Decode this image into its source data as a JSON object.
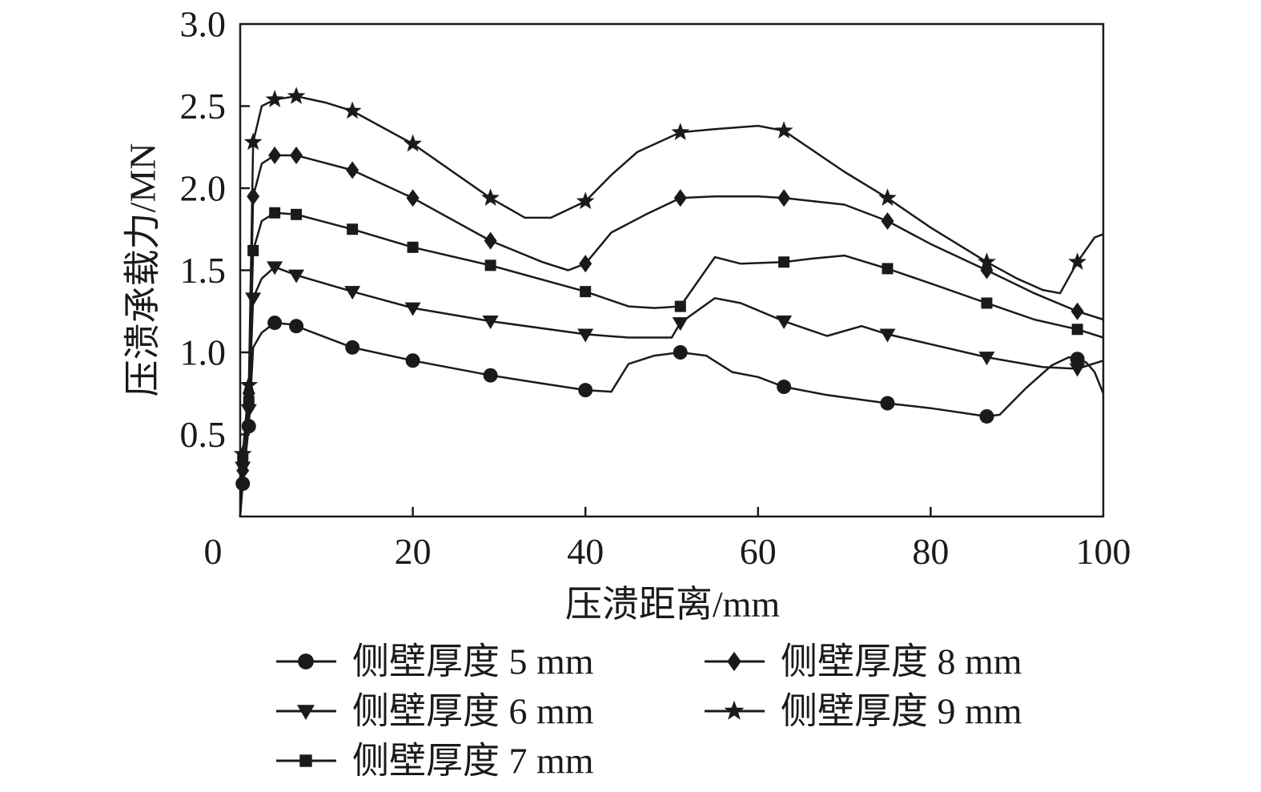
{
  "chart_data": {
    "type": "line",
    "xlabel": "压溃距离/mm",
    "ylabel": "压溃承载力/MN",
    "xlim": [
      0,
      100
    ],
    "ylim": [
      0,
      3.0
    ],
    "xticks": [
      "0",
      "20",
      "40",
      "60",
      "80",
      "100"
    ],
    "yticks": [
      "0.5",
      "1.0",
      "1.5",
      "2.0",
      "2.5",
      "3.0"
    ],
    "xtick_values": [
      0,
      20,
      40,
      60,
      80,
      100
    ],
    "ytick_values": [
      0.5,
      1.0,
      1.5,
      2.0,
      2.5,
      3.0
    ],
    "grid": false,
    "legend_position": "bottom",
    "line_color": "#1a1a1a",
    "series": [
      {
        "name": "侧壁厚度 5 mm",
        "marker": "circle",
        "x": [
          0,
          0.3,
          1,
          1.5,
          2.5,
          4,
          6,
          8,
          13,
          20,
          29,
          35,
          40,
          43,
          45,
          48,
          51,
          54,
          57,
          60,
          63,
          68,
          75,
          80,
          86.5,
          88,
          91,
          94,
          96,
          97,
          98,
          99,
          100
        ],
        "y": [
          0,
          0.2,
          0.55,
          1.03,
          1.12,
          1.18,
          1.17,
          1.13,
          1.03,
          0.95,
          0.86,
          0.81,
          0.77,
          0.76,
          0.93,
          0.98,
          1.0,
          0.98,
          0.88,
          0.85,
          0.79,
          0.74,
          0.69,
          0.66,
          0.61,
          0.62,
          0.78,
          0.92,
          0.97,
          0.96,
          0.94,
          0.88,
          0.75
        ],
        "marker_x": [
          0.3,
          1,
          4,
          6.5,
          13,
          20,
          29,
          40,
          51,
          63,
          75,
          86.5,
          97
        ]
      },
      {
        "name": "侧壁厚度 6 mm",
        "marker": "triangle-down",
        "x": [
          0,
          0.3,
          1,
          1.5,
          2.5,
          4,
          6.5,
          13,
          20,
          29,
          40,
          45,
          50,
          51,
          55,
          58,
          63,
          68,
          72,
          75,
          80,
          86.5,
          93,
          97,
          100
        ],
        "y": [
          0,
          0.3,
          0.65,
          1.33,
          1.45,
          1.52,
          1.47,
          1.37,
          1.27,
          1.19,
          1.11,
          1.09,
          1.09,
          1.18,
          1.33,
          1.3,
          1.19,
          1.1,
          1.16,
          1.11,
          1.05,
          0.97,
          0.91,
          0.9,
          0.95
        ],
        "marker_x": [
          0.3,
          1,
          1.5,
          4,
          6.5,
          13,
          20,
          29,
          40,
          51,
          63,
          75,
          86.5,
          97
        ]
      },
      {
        "name": "侧壁厚度 7 mm",
        "marker": "square",
        "x": [
          0,
          0.3,
          1,
          1.5,
          2.5,
          4,
          6.5,
          13,
          20,
          29,
          40,
          45,
          48,
          51,
          55,
          58,
          63,
          66,
          70,
          75,
          80,
          86.5,
          92,
          97,
          100
        ],
        "y": [
          0,
          0.35,
          0.7,
          1.62,
          1.8,
          1.85,
          1.84,
          1.75,
          1.64,
          1.53,
          1.37,
          1.28,
          1.27,
          1.28,
          1.58,
          1.54,
          1.55,
          1.57,
          1.59,
          1.51,
          1.42,
          1.3,
          1.2,
          1.14,
          1.09
        ],
        "marker_x": [
          0.3,
          1,
          1.5,
          4,
          6.5,
          13,
          20,
          29,
          40,
          51,
          63,
          75,
          86.5,
          97
        ]
      },
      {
        "name": "侧壁厚度 8 mm",
        "marker": "diamond",
        "x": [
          0,
          0.3,
          1,
          1.5,
          2.5,
          4,
          6.5,
          13,
          20,
          29,
          35,
          38,
          40,
          43,
          47,
          51,
          55,
          60,
          63,
          70,
          75,
          80,
          86.5,
          92,
          97,
          100
        ],
        "y": [
          0,
          0.28,
          0.75,
          1.95,
          2.15,
          2.2,
          2.2,
          2.11,
          1.94,
          1.68,
          1.55,
          1.5,
          1.54,
          1.73,
          1.84,
          1.94,
          1.95,
          1.95,
          1.94,
          1.9,
          1.8,
          1.66,
          1.5,
          1.36,
          1.25,
          1.2
        ],
        "marker_x": [
          0.3,
          1,
          1.5,
          4,
          6.5,
          13,
          20,
          29,
          40,
          51,
          63,
          75,
          86.5,
          97
        ]
      },
      {
        "name": "侧壁厚度 9 mm",
        "marker": "star",
        "x": [
          0,
          0.3,
          1,
          1.5,
          2.5,
          4,
          6.5,
          10,
          13,
          20,
          29,
          33,
          36,
          40,
          43,
          46,
          51,
          55,
          60,
          63,
          70,
          75,
          80,
          86.5,
          90,
          93,
          95,
          97,
          99,
          100
        ],
        "y": [
          0,
          0.38,
          0.8,
          2.28,
          2.5,
          2.54,
          2.56,
          2.52,
          2.47,
          2.27,
          1.94,
          1.82,
          1.82,
          1.92,
          2.08,
          2.22,
          2.34,
          2.36,
          2.38,
          2.35,
          2.1,
          1.94,
          1.76,
          1.55,
          1.45,
          1.38,
          1.36,
          1.55,
          1.7,
          1.72
        ],
        "marker_x": [
          0.3,
          1,
          1.5,
          4,
          6.5,
          13,
          20,
          29,
          40,
          51,
          63,
          75,
          86.5,
          97
        ]
      }
    ]
  }
}
